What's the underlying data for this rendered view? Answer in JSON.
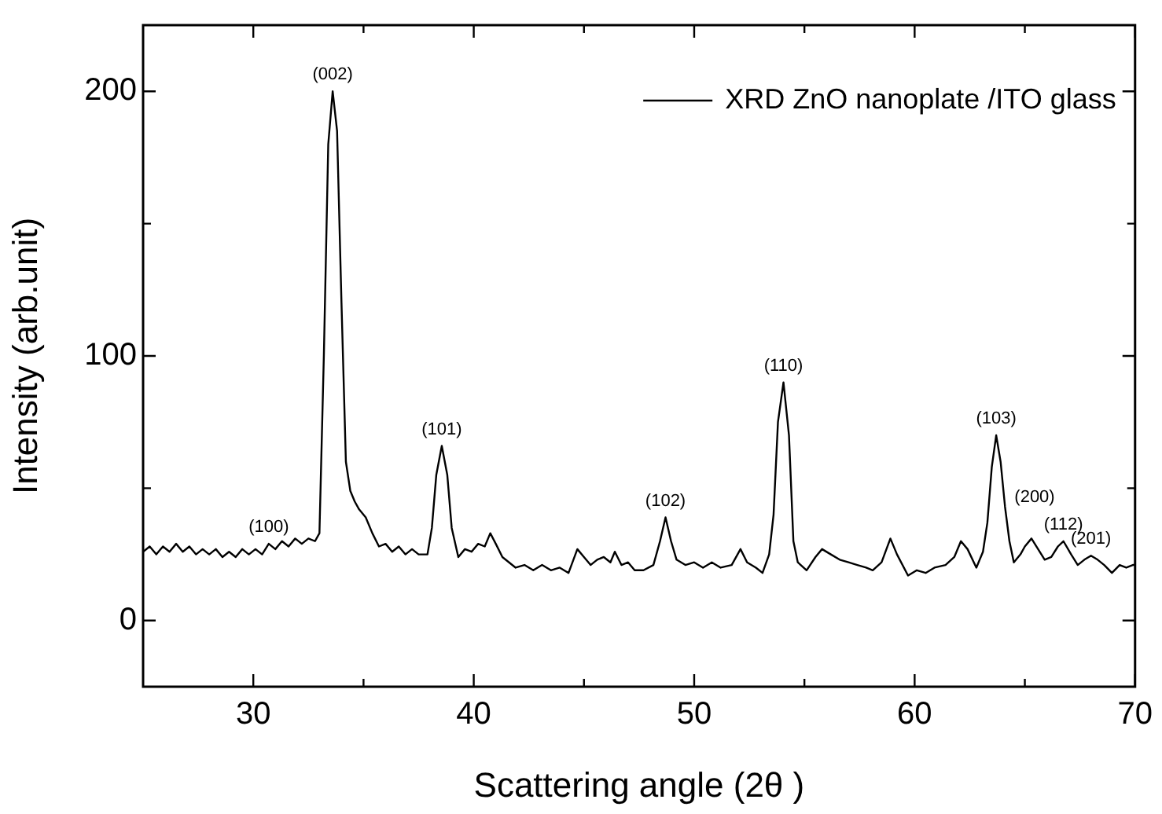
{
  "chart_data": {
    "type": "line",
    "xlabel": "Scattering angle (2θ )",
    "ylabel": "Intensity (arb.unit)",
    "xlim": [
      25,
      70
    ],
    "ylim": [
      -25,
      225
    ],
    "xticks": [
      30,
      {
        "value": 35,
        "label": null
      },
      40,
      {
        "value": 45,
        "label": null
      },
      50,
      {
        "value": 55,
        "label": null
      },
      60,
      {
        "value": 65,
        "label": null
      },
      70
    ],
    "yticks": [
      0,
      {
        "value": 50,
        "label": null
      },
      100,
      {
        "value": 150,
        "label": null
      },
      200
    ],
    "grid": false,
    "legend": "top right",
    "marker": "none",
    "line_style": "solid",
    "x": [
      25.0,
      25.3,
      25.6,
      25.9,
      26.2,
      26.5,
      26.8,
      27.1,
      27.4,
      27.7,
      28.0,
      28.3,
      28.6,
      28.9,
      29.2,
      29.5,
      29.8,
      30.1,
      30.4,
      30.7,
      31.0,
      31.3,
      31.6,
      31.9,
      32.2,
      32.5,
      32.8,
      33.0,
      33.2,
      33.4,
      33.6,
      33.8,
      34.0,
      34.2,
      34.4,
      34.6,
      34.8,
      35.1,
      35.4,
      35.7,
      36.0,
      36.3,
      36.6,
      36.9,
      37.2,
      37.5,
      37.9,
      38.1,
      38.3,
      38.55,
      38.8,
      39.0,
      39.3,
      39.6,
      39.9,
      40.2,
      40.5,
      40.75,
      41.0,
      41.3,
      41.6,
      41.9,
      42.3,
      42.7,
      43.1,
      43.5,
      43.9,
      44.3,
      44.7,
      45.0,
      45.3,
      45.6,
      45.9,
      46.2,
      46.4,
      46.7,
      47.0,
      47.3,
      47.7,
      48.15,
      48.45,
      48.7,
      48.95,
      49.2,
      49.6,
      50.0,
      50.4,
      50.8,
      51.2,
      51.7,
      52.1,
      52.4,
      52.8,
      53.1,
      53.4,
      53.6,
      53.8,
      54.05,
      54.3,
      54.5,
      54.7,
      55.1,
      55.5,
      55.8,
      56.2,
      56.6,
      57.0,
      57.4,
      57.8,
      58.1,
      58.5,
      58.9,
      59.2,
      59.7,
      60.1,
      60.5,
      60.9,
      61.4,
      61.8,
      62.1,
      62.4,
      62.8,
      63.1,
      63.3,
      63.5,
      63.7,
      63.9,
      64.1,
      64.3,
      64.5,
      64.8,
      65.0,
      65.3,
      65.6,
      65.9,
      66.2,
      66.5,
      66.75,
      67.1,
      67.4,
      67.7,
      68.0,
      68.3,
      68.6,
      68.95,
      69.3,
      69.6,
      69.9,
      70.0
    ],
    "series": [
      {
        "name": "XRD ZnO nanoplate /ITO glass",
        "color": "#000000",
        "values": [
          26,
          28,
          25,
          28,
          26,
          29,
          26,
          28,
          25,
          27,
          25,
          27,
          24,
          26,
          24,
          27,
          25,
          27,
          25,
          29,
          27,
          30,
          28,
          31,
          29,
          31,
          30,
          33,
          100,
          180,
          200,
          185,
          120,
          60,
          49,
          45,
          42,
          39,
          33,
          28,
          29,
          26,
          28,
          25,
          27,
          25,
          25,
          35,
          55,
          66,
          55,
          35,
          24,
          27,
          26,
          29,
          28,
          33,
          29,
          24,
          22,
          20,
          21,
          19,
          21,
          19,
          20,
          18,
          27,
          24,
          21,
          23,
          24,
          22,
          26,
          21,
          22,
          19,
          19,
          21,
          30,
          39,
          30,
          23,
          21,
          22,
          20,
          22,
          20,
          21,
          27,
          22,
          20,
          18,
          25,
          40,
          75,
          90,
          70,
          30,
          22,
          19,
          24,
          27,
          25,
          23,
          22,
          21,
          20,
          19,
          22,
          31,
          25,
          17,
          19,
          18,
          20,
          21,
          24,
          30,
          27,
          20,
          26,
          37,
          58,
          70,
          60,
          43,
          30,
          22,
          25,
          28,
          31,
          27,
          23,
          24,
          28,
          30,
          25,
          21,
          23,
          24.5,
          23,
          21,
          18,
          21,
          20,
          21,
          21
        ]
      }
    ],
    "annotations": [
      {
        "text": "(100)",
        "x": 30.7,
        "y": 29
      },
      {
        "text": "(002)",
        "x": 33.6,
        "y": 200
      },
      {
        "text": "(101)",
        "x": 38.55,
        "y": 66
      },
      {
        "text": "(102)",
        "x": 48.7,
        "y": 39
      },
      {
        "text": "(110)",
        "x": 54.05,
        "y": 90
      },
      {
        "text": "(103)",
        "x": 63.7,
        "y": 70
      },
      {
        "text": "(200)",
        "x": 64.1,
        "y": 43
      },
      {
        "text": "(112)",
        "x": 66.75,
        "y": 30
      },
      {
        "text": "(201)",
        "x": 68.0,
        "y": 24.5
      }
    ]
  }
}
